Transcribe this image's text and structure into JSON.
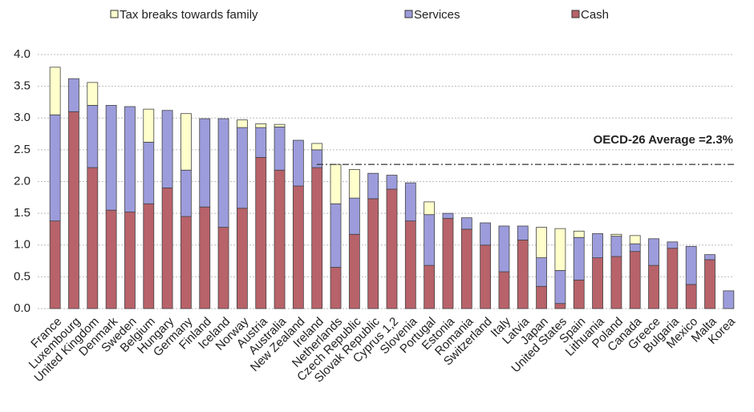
{
  "chart_data": {
    "type": "stacked_bar",
    "categories": [
      "France",
      "Luxembourg",
      "United Kingdom",
      "Denmark",
      "Sweden",
      "Belgium",
      "Hungary",
      "Germany",
      "Finland",
      "Iceland",
      "Norway",
      "Austria",
      "Australia",
      "New Zealand",
      "Ireland",
      "Netherlands",
      "Czech Republic",
      "Slovak Republic",
      "Cyprus 1,2",
      "Slovenia",
      "Portugal",
      "Estonia",
      "Romania",
      "Switzerland",
      "Italy",
      "Latvia",
      "Japan",
      "United States",
      "Spain",
      "Lithuania",
      "Poland",
      "Canada",
      "Greece",
      "Bulgaria",
      "Mexico",
      "Malta",
      "Korea"
    ],
    "series": [
      {
        "name": "Cash",
        "color": "#b8626a",
        "values": [
          1.38,
          3.1,
          2.22,
          1.55,
          1.52,
          1.65,
          1.9,
          1.45,
          1.6,
          1.28,
          1.58,
          2.38,
          2.18,
          1.93,
          2.22,
          0.65,
          1.17,
          1.73,
          1.88,
          1.38,
          0.68,
          1.42,
          1.25,
          1.0,
          0.58,
          1.08,
          0.35,
          0.08,
          0.45,
          0.8,
          0.82,
          0.9,
          0.68,
          0.95,
          0.38,
          0.77,
          0
        ]
      },
      {
        "name": "Services",
        "color": "#9c9cdc",
        "values": [
          1.67,
          0.52,
          0.98,
          1.65,
          1.66,
          0.97,
          1.22,
          0.73,
          1.39,
          1.71,
          1.27,
          0.47,
          0.68,
          0.72,
          0.28,
          1.0,
          0.57,
          0.4,
          0.22,
          0.6,
          0.8,
          0.08,
          0.18,
          0.35,
          0.72,
          0.22,
          0.45,
          0.52,
          0.67,
          0.38,
          0.32,
          0.12,
          0.42,
          0.1,
          0.6,
          0.08,
          0.28
        ]
      },
      {
        "name": "Tax breaks towards family",
        "color": "#ffffcc",
        "values": [
          0.75,
          0,
          0.36,
          0,
          0,
          0.52,
          0,
          0.89,
          0,
          0,
          0.12,
          0.06,
          0.04,
          0,
          0.1,
          0.62,
          0.45,
          0,
          0,
          0,
          0.2,
          0,
          0,
          0,
          0,
          0,
          0.48,
          0.66,
          0.1,
          0,
          0.03,
          0.13,
          0,
          0,
          0,
          0,
          0
        ]
      }
    ],
    "ylim": [
      0,
      4.0
    ],
    "yticks": [
      {
        "value": 0,
        "label": "0.0"
      },
      {
        "value": 0.5,
        "label": "0.5"
      },
      {
        "value": 1,
        "label": "1.0"
      },
      {
        "value": 1.5,
        "label": "1.5"
      },
      {
        "value": 2,
        "label": "2.0"
      },
      {
        "value": 2.5,
        "label": "2.5"
      },
      {
        "value": 3,
        "label": "3.0"
      },
      {
        "value": 3.5,
        "label": "3.5"
      },
      {
        "value": 4,
        "label": "4.0"
      }
    ],
    "grid": true,
    "average": {
      "value": 2.27,
      "label": "OECD-26 Average =2.3%"
    },
    "legend": "top"
  }
}
